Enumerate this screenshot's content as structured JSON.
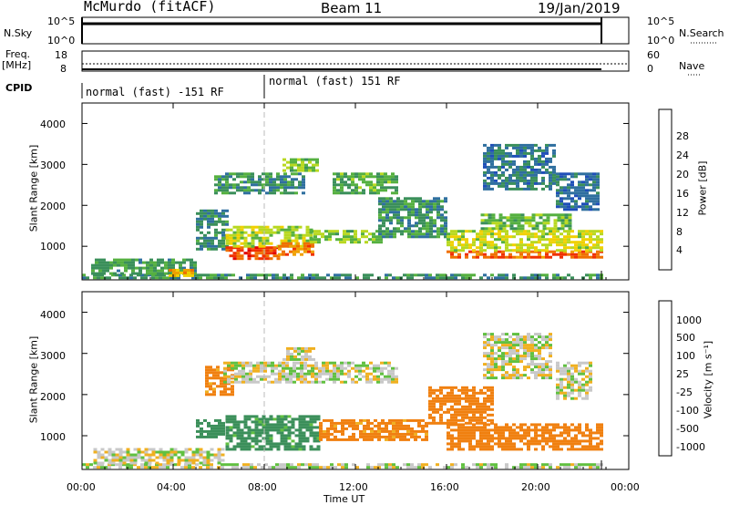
{
  "header": {
    "station": "McMurdo (fitACF)",
    "beam": "Beam 11",
    "date": "19/Jan/2019"
  },
  "strip": {
    "nsky_label": "N.Sky",
    "nsearch_label": "N.Search",
    "freq_label": "Freq.",
    "freq_unit": "[MHz]",
    "nave_label": "Nave",
    "cpid_label": "CPID",
    "nsky_ticks": [
      "10^5",
      "10^0"
    ],
    "nsearch_ticks": [
      "10^5",
      "10^0"
    ],
    "freq_ticks": [
      "18",
      "8"
    ],
    "nave_ticks": [
      "60",
      "0"
    ],
    "cpid_segments": [
      {
        "start_hour": 0.0,
        "label": "normal (fast) -151 RF"
      },
      {
        "start_hour": 8.0,
        "label": "normal (fast) 151 RF"
      }
    ]
  },
  "axes": {
    "ylabel": "Slant Range [km]",
    "xlabel": "Time UT",
    "yticks": [
      "1000",
      "2000",
      "3000",
      "4000"
    ],
    "xticks": [
      "00:00",
      "04:00",
      "08:00",
      "12:00",
      "16:00",
      "20:00",
      "00:00"
    ]
  },
  "power_colorbar": {
    "label": "Power [dB]",
    "ticks": [
      "4",
      "8",
      "12",
      "16",
      "20",
      "24",
      "28"
    ],
    "colors": [
      "#1010ff",
      "#1f4fb8",
      "#2f6f9f",
      "#3a8f5a",
      "#55b040",
      "#b8d820",
      "#f0d000",
      "#f0a000",
      "#f07000",
      "#f03000",
      "#e00000"
    ]
  },
  "velocity_colorbar": {
    "label": "Velocity [m s⁻¹]",
    "ticks": [
      "1000",
      "500",
      "100",
      "25",
      "-25",
      "-100",
      "-500",
      "-1000"
    ],
    "colors": [
      "#2030c0",
      "#2f6090",
      "#3b8f5a",
      "#60c040",
      "#c8c8c8",
      "#f0b020",
      "#f08010",
      "#f04010",
      "#e00000"
    ]
  },
  "chart_data": [
    {
      "type": "heatmap",
      "title": "Power",
      "x_range_hours": [
        0,
        24
      ],
      "ylim": [
        180,
        4500
      ],
      "data_end_hour": 22.8,
      "value_range_db": [
        0,
        30
      ],
      "regions": [
        {
          "t0": 0.0,
          "t1": 22.8,
          "r0": 200,
          "r1": 330,
          "value": 9
        },
        {
          "t0": 0.4,
          "t1": 5.0,
          "r0": 350,
          "r1": 700,
          "value": 10
        },
        {
          "t0": 3.8,
          "t1": 4.8,
          "r0": 300,
          "r1": 450,
          "value": 21
        },
        {
          "t0": 5.0,
          "t1": 6.4,
          "r0": 900,
          "r1": 1900,
          "value": 8
        },
        {
          "t0": 6.3,
          "t1": 8.6,
          "r0": 700,
          "r1": 1000,
          "value": 26
        },
        {
          "t0": 6.3,
          "t1": 10.0,
          "r0": 1000,
          "r1": 1500,
          "value": 15
        },
        {
          "t0": 8.6,
          "t1": 10.2,
          "r0": 800,
          "r1": 1100,
          "value": 23
        },
        {
          "t0": 10.0,
          "t1": 13.2,
          "r0": 1100,
          "r1": 1400,
          "value": 13
        },
        {
          "t0": 5.8,
          "t1": 9.8,
          "r0": 2300,
          "r1": 2800,
          "value": 9
        },
        {
          "t0": 8.8,
          "t1": 10.4,
          "r0": 2850,
          "r1": 3150,
          "value": 13
        },
        {
          "t0": 11.0,
          "t1": 13.8,
          "r0": 2300,
          "r1": 2800,
          "value": 11
        },
        {
          "t0": 13.0,
          "t1": 16.0,
          "r0": 1200,
          "r1": 2200,
          "value": 9
        },
        {
          "t0": 16.0,
          "t1": 22.8,
          "r0": 700,
          "r1": 900,
          "value": 25
        },
        {
          "t0": 16.0,
          "t1": 22.8,
          "r0": 900,
          "r1": 1400,
          "value": 16
        },
        {
          "t0": 17.5,
          "t1": 21.5,
          "r0": 1400,
          "r1": 1800,
          "value": 12
        },
        {
          "t0": 17.6,
          "t1": 20.8,
          "r0": 2400,
          "r1": 3500,
          "value": 7
        },
        {
          "t0": 20.8,
          "t1": 22.6,
          "r0": 1900,
          "r1": 2800,
          "value": 6
        }
      ]
    },
    {
      "type": "heatmap",
      "title": "Velocity",
      "x_range_hours": [
        0,
        24
      ],
      "ylim": [
        180,
        4500
      ],
      "data_end_hour": 22.8,
      "value_range_ms": [
        -1000,
        1000
      ],
      "regions": [
        {
          "t0": 0.0,
          "t1": 22.8,
          "r0": 200,
          "r1": 330,
          "value": 10
        },
        {
          "t0": 0.5,
          "t1": 6.2,
          "r0": 350,
          "r1": 700,
          "value": 0
        },
        {
          "t0": 5.0,
          "t1": 6.2,
          "r0": 1000,
          "r1": 1400,
          "value": 200
        },
        {
          "t0": 6.3,
          "t1": 10.4,
          "r0": 700,
          "r1": 1500,
          "value": 150
        },
        {
          "t0": 10.4,
          "t1": 15.2,
          "r0": 900,
          "r1": 1400,
          "value": -150
        },
        {
          "t0": 5.4,
          "t1": 6.6,
          "r0": 2000,
          "r1": 2700,
          "value": -150
        },
        {
          "t0": 6.2,
          "t1": 13.8,
          "r0": 2300,
          "r1": 2800,
          "value": 0
        },
        {
          "t0": 8.8,
          "t1": 10.2,
          "r0": 2850,
          "r1": 3150,
          "value": 0
        },
        {
          "t0": 15.2,
          "t1": 18.0,
          "r0": 1300,
          "r1": 2200,
          "value": -200
        },
        {
          "t0": 16.0,
          "t1": 22.8,
          "r0": 700,
          "r1": 1300,
          "value": -250
        },
        {
          "t0": 17.6,
          "t1": 20.6,
          "r0": 2400,
          "r1": 3500,
          "value": 0
        },
        {
          "t0": 20.8,
          "t1": 22.4,
          "r0": 1900,
          "r1": 2800,
          "value": 0
        }
      ]
    }
  ]
}
